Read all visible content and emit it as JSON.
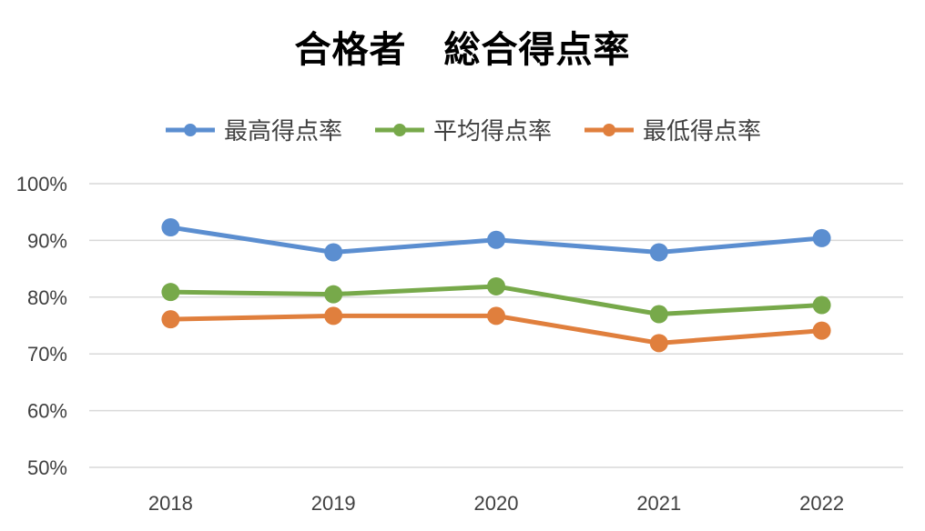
{
  "chart_data": {
    "type": "line",
    "title": "合格者　総合得点率",
    "categories": [
      "2018",
      "2019",
      "2020",
      "2021",
      "2022"
    ],
    "series": [
      {
        "name": "最高得点率",
        "color": "#5b8ed0",
        "values": [
          92.3,
          87.9,
          90.1,
          87.9,
          90.4
        ]
      },
      {
        "name": "平均得点率",
        "color": "#77a94a",
        "values": [
          80.9,
          80.5,
          81.9,
          77.0,
          78.6
        ]
      },
      {
        "name": "最低得点率",
        "color": "#e07f3d",
        "values": [
          76.1,
          76.7,
          76.7,
          71.9,
          74.1
        ]
      }
    ],
    "ylim": [
      50,
      100
    ],
    "yticks": [
      "50%",
      "60%",
      "70%",
      "80%",
      "90%",
      "100%"
    ],
    "grid": true,
    "legend_position": "top"
  }
}
